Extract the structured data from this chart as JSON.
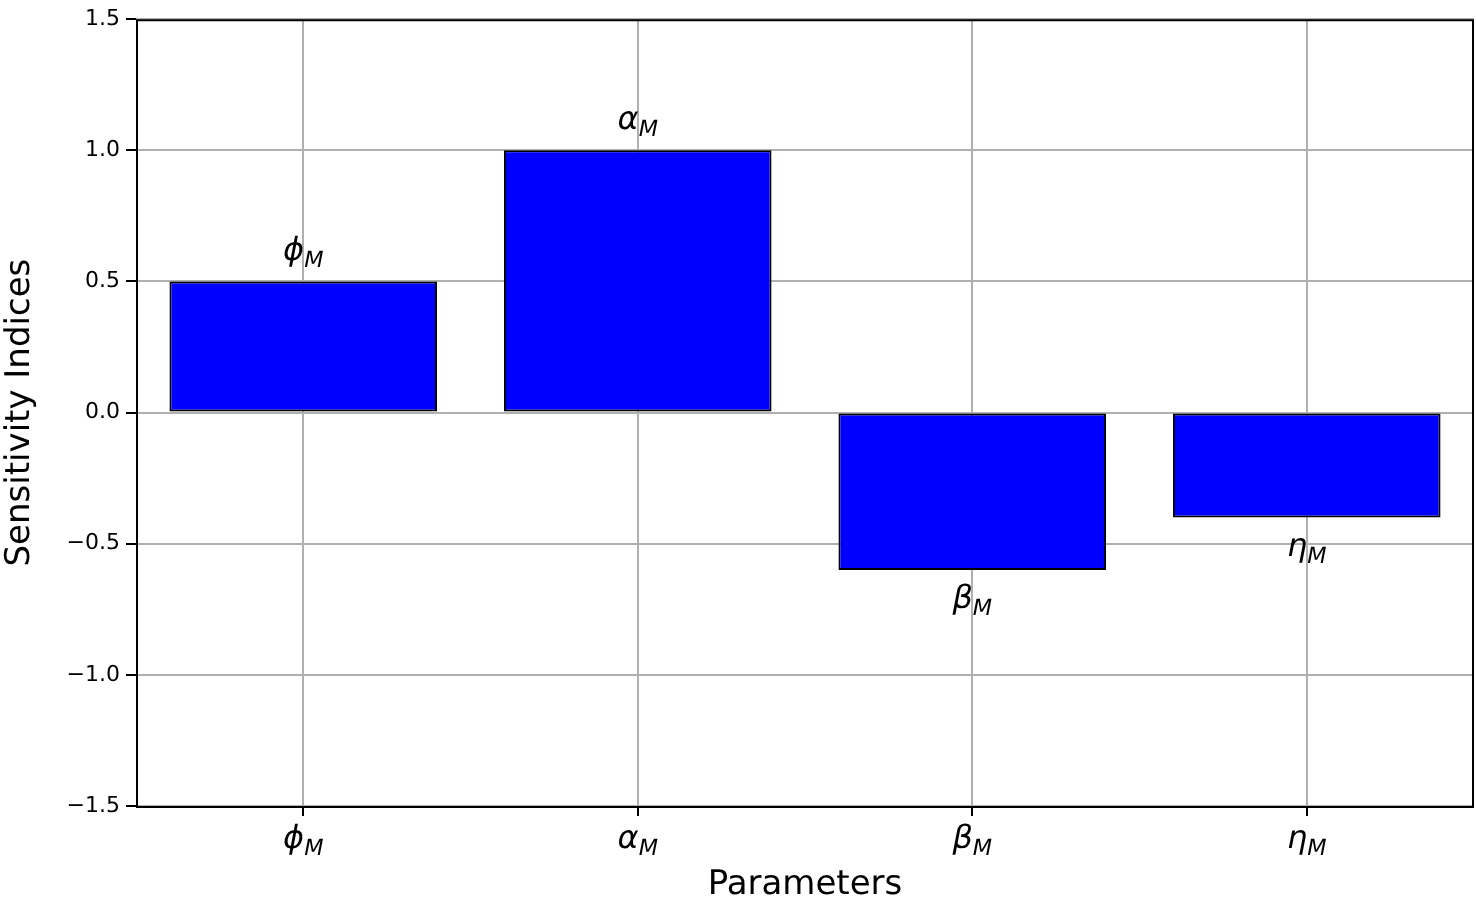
{
  "chart_data": {
    "type": "bar",
    "xlabel": "Parameters",
    "ylabel": "Sensitivity Indices",
    "categories": [
      "ϕ$_{M}$",
      "α$_{M}$",
      "β$_{M}$",
      "η$_{M}$"
    ],
    "values": [
      0.5,
      1.0,
      -0.6,
      -0.4
    ],
    "color": "#0000ff",
    "ylim": [
      -1.5,
      1.5
    ],
    "yticks": [
      {
        "value": -1.5,
        "label": "−1.5"
      },
      {
        "value": -1.0,
        "label": "−1.0"
      },
      {
        "value": -0.5,
        "label": "−0.5"
      },
      {
        "value": 0,
        "label": "0.0"
      },
      {
        "value": 0.5,
        "label": "0.5"
      },
      {
        "value": 1.0,
        "label": "1.0"
      },
      {
        "value": 1.5,
        "label": "1.5"
      }
    ],
    "grid": true,
    "annotations": [
      {
        "text": "ϕ$_{M}$",
        "x": "ϕ$_{M}$",
        "y": 0.5
      },
      {
        "text": "α$_{M}$",
        "x": "α$_{M}$",
        "y": 1.0
      },
      {
        "text": "β$_{M}$",
        "x": "β$_{M}$",
        "y": -0.6
      },
      {
        "text": "η$_{M}$",
        "x": "η$_{M}$",
        "y": -0.4
      }
    ]
  }
}
